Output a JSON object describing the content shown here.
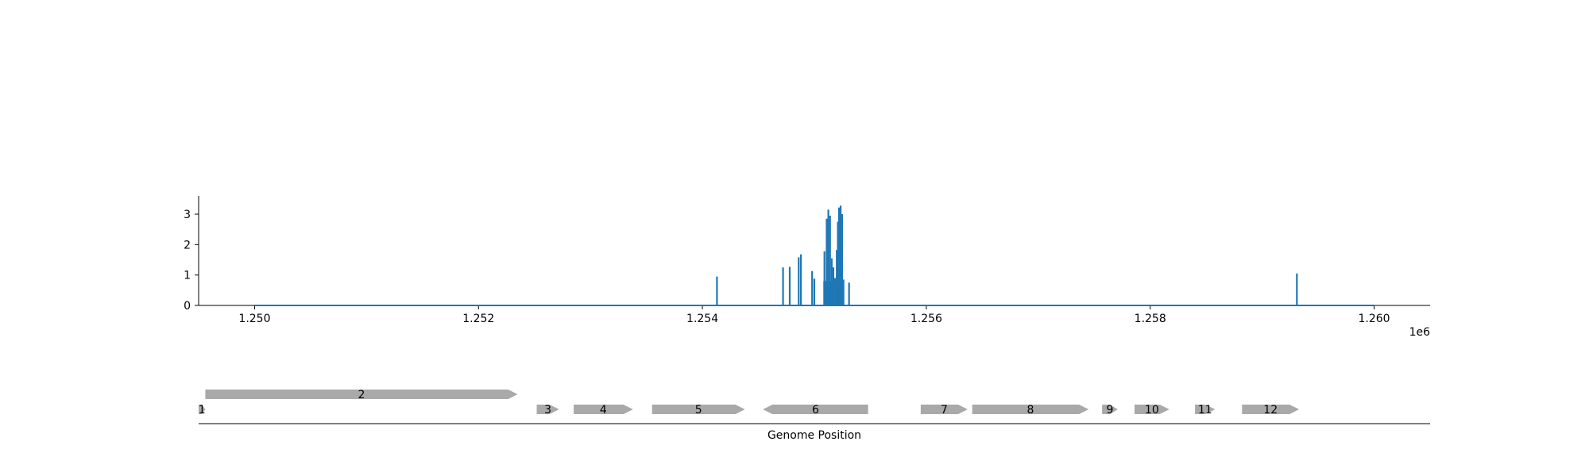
{
  "chart_data": [
    {
      "type": "line",
      "x_exponent_label": "1e6",
      "x_ticks": [
        1250000,
        1252000,
        1254000,
        1256000,
        1258000,
        1260000
      ],
      "x_tick_labels": [
        "1.250",
        "1.252",
        "1.254",
        "1.256",
        "1.258",
        "1.260"
      ],
      "y_ticks": [
        0,
        1,
        2,
        3
      ],
      "y_tick_labels": [
        "0",
        "1",
        "2",
        "3"
      ],
      "xlim": [
        1249500,
        1260500
      ],
      "ylim": [
        0,
        3.6
      ],
      "color": "#1f77b4",
      "baseline": {
        "x_start": 1250000,
        "x_end": 1260000,
        "y": 0
      },
      "spikes": [
        {
          "x": 1254130,
          "y": 0.95
        },
        {
          "x": 1254720,
          "y": 1.25
        },
        {
          "x": 1254780,
          "y": 1.27
        },
        {
          "x": 1254860,
          "y": 1.58
        },
        {
          "x": 1254880,
          "y": 1.68
        },
        {
          "x": 1254980,
          "y": 1.13
        },
        {
          "x": 1255000,
          "y": 0.88
        },
        {
          "x": 1255090,
          "y": 1.78
        },
        {
          "x": 1255110,
          "y": 2.85
        },
        {
          "x": 1255125,
          "y": 3.15
        },
        {
          "x": 1255140,
          "y": 2.95
        },
        {
          "x": 1255155,
          "y": 1.55
        },
        {
          "x": 1255170,
          "y": 1.25
        },
        {
          "x": 1255185,
          "y": 0.9
        },
        {
          "x": 1255200,
          "y": 1.82
        },
        {
          "x": 1255210,
          "y": 2.75
        },
        {
          "x": 1255220,
          "y": 3.22
        },
        {
          "x": 1255235,
          "y": 3.28
        },
        {
          "x": 1255248,
          "y": 3.0
        },
        {
          "x": 1255260,
          "y": 0.85
        },
        {
          "x": 1255310,
          "y": 0.75
        },
        {
          "x": 1259310,
          "y": 1.05
        }
      ],
      "clusters": [
        {
          "x_start": 1255080,
          "x_end": 1255265,
          "y": 0.8
        }
      ]
    },
    {
      "type": "gene_track",
      "xlabel": "Genome Position",
      "color": "#a9a9a9",
      "genes": [
        {
          "label": "1",
          "start": 1249500,
          "end": 1249560,
          "strand": "+",
          "row": 1
        },
        {
          "label": "2",
          "start": 1249560,
          "end": 1252350,
          "strand": "+",
          "row": 0
        },
        {
          "label": "3",
          "start": 1252520,
          "end": 1252720,
          "strand": "+",
          "row": 1
        },
        {
          "label": "4",
          "start": 1252850,
          "end": 1253380,
          "strand": "+",
          "row": 1
        },
        {
          "label": "5",
          "start": 1253550,
          "end": 1254380,
          "strand": "+",
          "row": 1
        },
        {
          "label": "6",
          "start": 1254540,
          "end": 1255480,
          "strand": "-",
          "row": 1
        },
        {
          "label": "7",
          "start": 1255950,
          "end": 1256370,
          "strand": "+",
          "row": 1
        },
        {
          "label": "8",
          "start": 1256410,
          "end": 1257450,
          "strand": "+",
          "row": 1
        },
        {
          "label": "9",
          "start": 1257570,
          "end": 1257710,
          "strand": "+",
          "row": 1
        },
        {
          "label": "10",
          "start": 1257860,
          "end": 1258170,
          "strand": "+",
          "row": 1
        },
        {
          "label": "11",
          "start": 1258400,
          "end": 1258580,
          "strand": "+",
          "row": 1
        },
        {
          "label": "12",
          "start": 1258820,
          "end": 1259330,
          "strand": "+",
          "row": 1
        }
      ]
    }
  ]
}
